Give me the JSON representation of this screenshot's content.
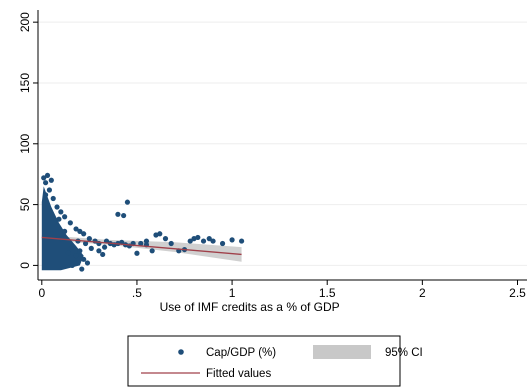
{
  "chart_data": {
    "type": "scatter",
    "title": "",
    "xlabel": "Use of IMF credits as a % of GDP",
    "ylabel": "",
    "xlim": [
      -0.02,
      2.55
    ],
    "ylim": [
      -12,
      210
    ],
    "x_ticks": [
      0,
      0.5,
      1,
      1.5,
      2,
      2.5
    ],
    "x_tick_labels": [
      "0",
      ".5",
      "1",
      "1.5",
      "2",
      "2.5"
    ],
    "y_ticks": [
      0,
      50,
      100,
      150,
      200
    ],
    "y_tick_labels": [
      "0",
      "50",
      "100",
      "150",
      "200"
    ],
    "grid": true,
    "legend_position": "bottom",
    "colors": {
      "points": "#1f4e79",
      "fit": "#a0404a",
      "ci": "#c8c8c8",
      "grid": "#eeeeee"
    },
    "series": [
      {
        "name": "Cap/GDP (%)",
        "kind": "scatter",
        "points": [
          [
            0.01,
            72
          ],
          [
            0.02,
            68
          ],
          [
            0.03,
            74
          ],
          [
            0.04,
            62
          ],
          [
            0.05,
            70
          ],
          [
            0.02,
            58
          ],
          [
            0.06,
            55
          ],
          [
            0.08,
            48
          ],
          [
            0.1,
            44
          ],
          [
            0.09,
            38
          ],
          [
            0.12,
            40
          ],
          [
            0.15,
            35
          ],
          [
            0.18,
            30
          ],
          [
            0.2,
            28
          ],
          [
            0.22,
            26
          ],
          [
            0.25,
            22
          ],
          [
            0.28,
            20
          ],
          [
            0.3,
            18
          ],
          [
            0.33,
            15
          ],
          [
            0.2,
            12
          ],
          [
            0.18,
            8
          ],
          [
            0.22,
            5
          ],
          [
            0.24,
            2
          ],
          [
            0.12,
            28
          ],
          [
            0.1,
            22
          ],
          [
            0.16,
            15
          ],
          [
            0.14,
            10
          ],
          [
            0.26,
            14
          ],
          [
            0.23,
            18
          ],
          [
            0.19,
            20
          ],
          [
            0.21,
            -3
          ],
          [
            0.16,
            0
          ],
          [
            0.34,
            20
          ],
          [
            0.36,
            18
          ],
          [
            0.38,
            17
          ],
          [
            0.4,
            18
          ],
          [
            0.42,
            19
          ],
          [
            0.44,
            17
          ],
          [
            0.46,
            16
          ],
          [
            0.48,
            18
          ],
          [
            0.52,
            18
          ],
          [
            0.55,
            20
          ],
          [
            0.58,
            12
          ],
          [
            0.6,
            25
          ],
          [
            0.62,
            26
          ],
          [
            0.65,
            22
          ],
          [
            0.68,
            18
          ],
          [
            0.72,
            12
          ],
          [
            0.75,
            13
          ],
          [
            0.78,
            20
          ],
          [
            0.8,
            22
          ],
          [
            0.82,
            23
          ],
          [
            0.85,
            20
          ],
          [
            0.88,
            22
          ],
          [
            0.9,
            20
          ],
          [
            0.95,
            18
          ],
          [
            1.0,
            21
          ],
          [
            1.05,
            20
          ],
          [
            0.4,
            42
          ],
          [
            0.43,
            41
          ],
          [
            0.45,
            52
          ],
          [
            0.55,
            17
          ],
          [
            0.5,
            10
          ],
          [
            0.3,
            12
          ],
          [
            0.32,
            9
          ]
        ]
      },
      {
        "name": "Fitted values",
        "kind": "line",
        "x": [
          0.0,
          1.05
        ],
        "y": [
          23,
          9
        ]
      },
      {
        "name": "95% CI",
        "kind": "band",
        "x": [
          0.0,
          0.35,
          0.7,
          1.05
        ],
        "lower": [
          21,
          17,
          11,
          3
        ],
        "upper": [
          25,
          21,
          19,
          15
        ]
      }
    ],
    "legend": [
      {
        "label": "Cap/GDP (%)",
        "symbol": "point"
      },
      {
        "label": "95% CI",
        "symbol": "band"
      },
      {
        "label": "Fitted values",
        "symbol": "line"
      }
    ]
  }
}
